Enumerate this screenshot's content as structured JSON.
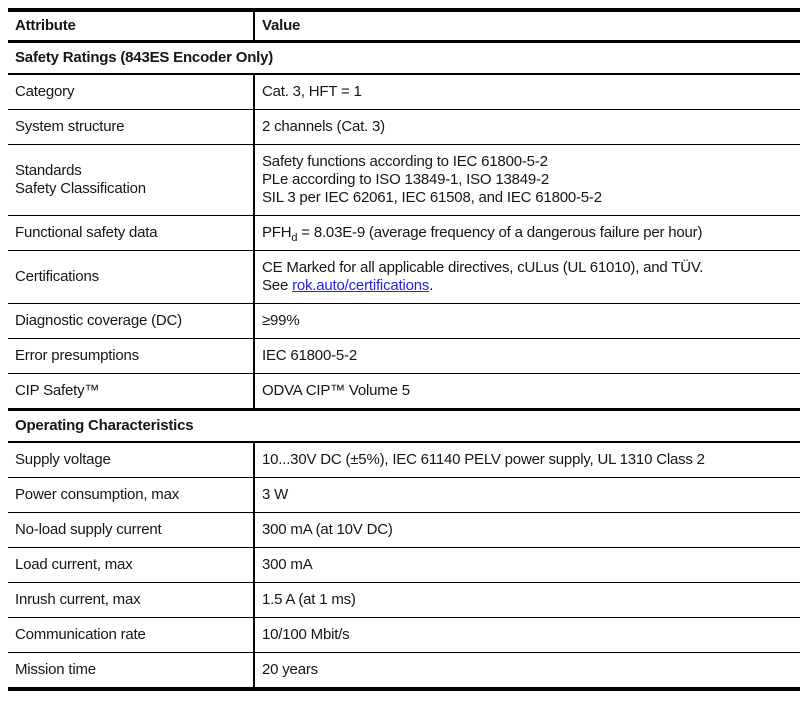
{
  "page": {
    "background": "#ffffff",
    "text_color": "#161616",
    "border_color": "#000000"
  },
  "table": {
    "link_color": "#2424e0",
    "columns": [
      "Attribute",
      "Value"
    ],
    "sections": [
      {
        "title": "Safety Ratings (843ES Encoder Only)",
        "rows": [
          {
            "attribute": "Category",
            "value": "Cat. 3, HFT = 1"
          },
          {
            "attribute": "System structure",
            "value": "2 channels (Cat. 3)"
          },
          {
            "attribute": "Standards\nSafety Classification",
            "value": "Safety functions according to IEC 61800-5-2\nPLe according to ISO 13849-1, ISO 13849-2\nSIL 3 per IEC 62061, IEC 61508, and IEC 61800-5-2"
          },
          {
            "attribute": "Functional safety data",
            "value_parts": {
              "base": "PFH",
              "sub": "d",
              "rest": " = 8.03E-9 (average frequency of a dangerous failure per hour)"
            }
          },
          {
            "attribute": "Certifications",
            "value_line1": "CE Marked for all applicable directives, cULus (UL 61010), and TÜV.",
            "see_prefix": "See ",
            "link_text": "rok.auto/certifications",
            "after_link": "."
          },
          {
            "attribute": "Diagnostic coverage (DC)",
            "value": "≥99%"
          },
          {
            "attribute": "Error presumptions",
            "value": "IEC 61800-5-2"
          },
          {
            "attribute": "CIP Safety™",
            "value": "ODVA CIP™ Volume 5"
          }
        ]
      },
      {
        "title": "Operating Characteristics",
        "rows": [
          {
            "attribute": "Supply voltage",
            "value": "10...30V DC (±5%), IEC 61140 PELV power supply, UL 1310 Class 2"
          },
          {
            "attribute": "Power consumption, max",
            "value": "3 W"
          },
          {
            "attribute": "No-load supply current",
            "value": "300 mA (at 10V DC)"
          },
          {
            "attribute": "Load current, max",
            "value": "300 mA"
          },
          {
            "attribute": "Inrush current, max",
            "value": "1.5 A (at 1 ms)"
          },
          {
            "attribute": "Communication rate",
            "value": "10/100 Mbit/s"
          },
          {
            "attribute": "Mission time",
            "value": "20 years"
          }
        ]
      }
    ]
  }
}
